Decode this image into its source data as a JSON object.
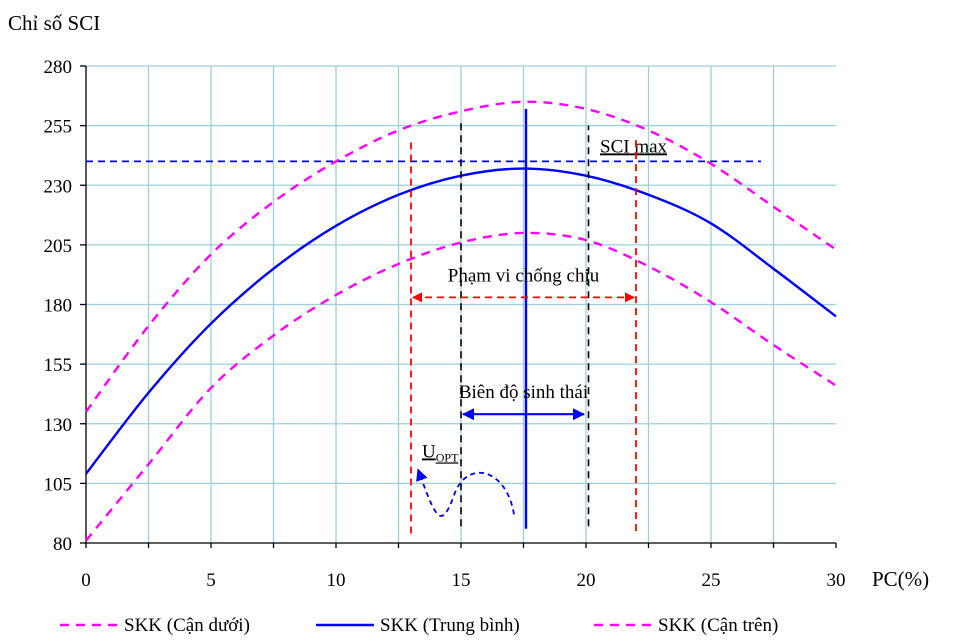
{
  "chart_data": {
    "type": "line",
    "ylabel": "Chỉ số SCI",
    "xlabel": "PC(%)",
    "xlim": [
      0,
      30
    ],
    "ylim": [
      80,
      280
    ],
    "x_ticks": [
      0,
      5,
      10,
      15,
      20,
      25,
      30
    ],
    "y_ticks": [
      80,
      105,
      130,
      155,
      180,
      205,
      230,
      255,
      280
    ],
    "grid": true,
    "legend_position": "bottom",
    "series": [
      {
        "name": "SKK (Cận dưới)",
        "style": "dashed",
        "color": "#ff00ff",
        "x": [
          0,
          2.5,
          5,
          7.5,
          10,
          12.5,
          15,
          17.5,
          20,
          22.5,
          25,
          27.5,
          30
        ],
        "y": [
          81,
          113,
          145,
          167,
          184,
          197,
          206,
          210,
          207,
          196,
          181,
          163,
          146
        ]
      },
      {
        "name": "SKK (Trung bình)",
        "style": "solid",
        "color": "#0000ff",
        "x": [
          0,
          2.5,
          5,
          7.5,
          10,
          12.5,
          15,
          17.5,
          20,
          22.5,
          25,
          27.5,
          30
        ],
        "y": [
          109,
          143,
          172,
          195,
          213,
          226,
          234,
          237,
          234,
          226,
          214,
          195,
          175
        ]
      },
      {
        "name": "SKK (Cận trên)",
        "style": "dashed",
        "color": "#ff00ff",
        "x": [
          0,
          2.5,
          5,
          7.5,
          10,
          12.5,
          15,
          17.5,
          20,
          22.5,
          25,
          27.5,
          30
        ],
        "y": [
          135,
          171,
          201,
          223,
          240,
          253,
          261,
          265,
          262,
          253,
          239,
          221,
          203
        ]
      }
    ],
    "annotations": {
      "sci_max": {
        "text": "SCI max",
        "y": 240,
        "x_start": 0,
        "x_end": 27
      },
      "tolerance_range": {
        "text": "Phạm vi chống chịu",
        "x_start": 13,
        "x_end": 22,
        "y": 183
      },
      "ecological_amplitude": {
        "text": "Biên độ sinh thái",
        "x_start": 15,
        "x_end": 20,
        "y": 134
      },
      "u_opt": {
        "text": "U",
        "subscript": "OPT",
        "x": 13.2,
        "y": 110
      },
      "optimum_line": {
        "x": 17.6,
        "y_bottom": 86,
        "y_top": 262
      },
      "black_lines": [
        {
          "x": 15,
          "y_bottom": 87,
          "y_top": 258
        },
        {
          "x": 20.1,
          "y_bottom": 87,
          "y_top": 255
        }
      ],
      "red_lines": [
        {
          "x": 13,
          "y_bottom": 84,
          "y_top": 250
        },
        {
          "x": 22,
          "y_bottom": 85,
          "y_top": 250
        }
      ]
    }
  }
}
